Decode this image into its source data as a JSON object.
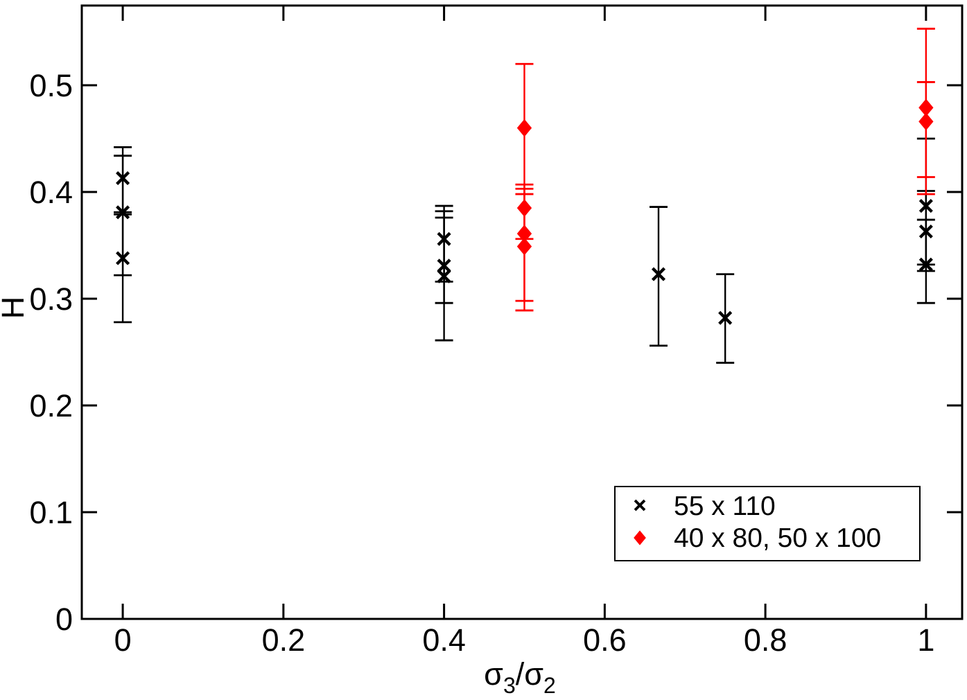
{
  "chart_data": {
    "type": "scatter",
    "title": "",
    "ylabel": "H",
    "xlabel_plain": "σ3/σ2",
    "xlabel_parts": [
      {
        "text": "σ",
        "sub": false
      },
      {
        "text": "3",
        "sub": true
      },
      {
        "text": "/σ",
        "sub": false
      },
      {
        "text": "2",
        "sub": true
      }
    ],
    "xlim": [
      -0.051,
      1.045
    ],
    "ylim": [
      0,
      0.5747
    ],
    "grid": false,
    "tick_style": "inward-mirrored",
    "xticks": [
      {
        "v": 0.0,
        "label": "0"
      },
      {
        "v": 0.2,
        "label": "0.2"
      },
      {
        "v": 0.4,
        "label": "0.4"
      },
      {
        "v": 0.6,
        "label": "0.6"
      },
      {
        "v": 0.8,
        "label": "0.8"
      },
      {
        "v": 1.0,
        "label": "1"
      }
    ],
    "yticks": [
      {
        "v": 0.0,
        "label": "0"
      },
      {
        "v": 0.1,
        "label": "0.1"
      },
      {
        "v": 0.2,
        "label": "0.2"
      },
      {
        "v": 0.3,
        "label": "0.3"
      },
      {
        "v": 0.4,
        "label": "0.4"
      },
      {
        "v": 0.5,
        "label": "0.5"
      }
    ],
    "legend_position": "bottom-right-inside",
    "series": [
      {
        "name": "55 x 110",
        "marker": "x-cross",
        "color": "#000000",
        "points": [
          {
            "x": 0,
            "y": 0.413,
            "ylo": 0.379,
            "yhi": 0.442
          },
          {
            "x": 0,
            "y": 0.381,
            "ylo": 0.322,
            "yhi": 0.434
          },
          {
            "x": 0,
            "y": 0.338,
            "ylo": 0.278,
            "yhi": 0.381
          },
          {
            "x": 0.4,
            "y": 0.356,
            "ylo": 0.316,
            "yhi": 0.387
          },
          {
            "x": 0.4,
            "y": 0.331,
            "ylo": 0.296,
            "yhi": 0.376
          },
          {
            "x": 0.4,
            "y": 0.321,
            "ylo": 0.261,
            "yhi": 0.382
          },
          {
            "x": 0.667,
            "y": 0.323,
            "ylo": 0.256,
            "yhi": 0.386
          },
          {
            "x": 0.75,
            "y": 0.282,
            "ylo": 0.24,
            "yhi": 0.323
          },
          {
            "x": 1,
            "y": 0.387,
            "ylo": 0.326,
            "yhi": 0.45
          },
          {
            "x": 1,
            "y": 0.363,
            "ylo": 0.332,
            "yhi": 0.401
          },
          {
            "x": 1,
            "y": 0.332,
            "ylo": 0.296,
            "yhi": 0.374
          }
        ]
      },
      {
        "name": "40 x 80, 50 x 100",
        "marker": "diamond",
        "color": "#ff0000",
        "points": [
          {
            "x": 0.5,
            "y": 0.46,
            "ylo": 0.398,
            "yhi": 0.52
          },
          {
            "x": 0.5,
            "y": 0.385,
            "ylo": 0.356,
            "yhi": 0.407
          },
          {
            "x": 0.5,
            "y": 0.361,
            "ylo": 0.298,
            "yhi": 0.403
          },
          {
            "x": 0.5,
            "y": 0.349,
            "ylo": 0.289,
            "yhi": 0.398
          },
          {
            "x": 1,
            "y": 0.479,
            "ylo": 0.398,
            "yhi": 0.553
          },
          {
            "x": 1,
            "y": 0.466,
            "ylo": 0.414,
            "yhi": 0.503
          }
        ]
      }
    ]
  },
  "colors": {
    "foreground": "#000000",
    "accent": "#ff0000",
    "background": "#ffffff"
  }
}
